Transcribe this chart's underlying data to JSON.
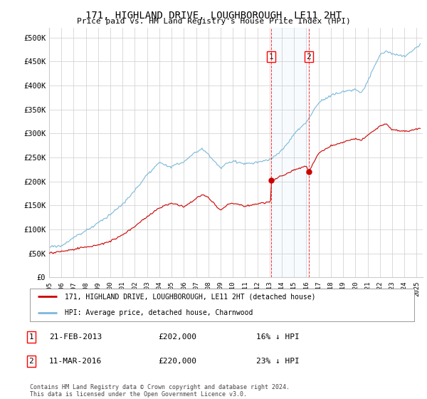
{
  "title": "171, HIGHLAND DRIVE, LOUGHBOROUGH, LE11 2HT",
  "subtitle": "Price paid vs. HM Land Registry's House Price Index (HPI)",
  "ylabel_ticks": [
    "£0",
    "£50K",
    "£100K",
    "£150K",
    "£200K",
    "£250K",
    "£300K",
    "£350K",
    "£400K",
    "£450K",
    "£500K"
  ],
  "ytick_values": [
    0,
    50000,
    100000,
    150000,
    200000,
    250000,
    300000,
    350000,
    400000,
    450000,
    500000
  ],
  "ylim": [
    0,
    520000
  ],
  "xlim_start": 1995.0,
  "xlim_end": 2025.5,
  "hpi_color": "#7ab8d9",
  "price_color": "#cc0000",
  "sale1_date": 2013.12,
  "sale1_price": 202000,
  "sale2_date": 2016.19,
  "sale2_price": 220000,
  "legend_line1": "171, HIGHLAND DRIVE, LOUGHBOROUGH, LE11 2HT (detached house)",
  "legend_line2": "HPI: Average price, detached house, Charnwood",
  "sale1_text": "21-FEB-2013",
  "sale1_amount": "£202,000",
  "sale1_note": "16% ↓ HPI",
  "sale2_text": "11-MAR-2016",
  "sale2_amount": "£220,000",
  "sale2_note": "23% ↓ HPI",
  "footer": "Contains HM Land Registry data © Crown copyright and database right 2024.\nThis data is licensed under the Open Government Licence v3.0.",
  "background_color": "#ffffff",
  "grid_color": "#cccccc"
}
